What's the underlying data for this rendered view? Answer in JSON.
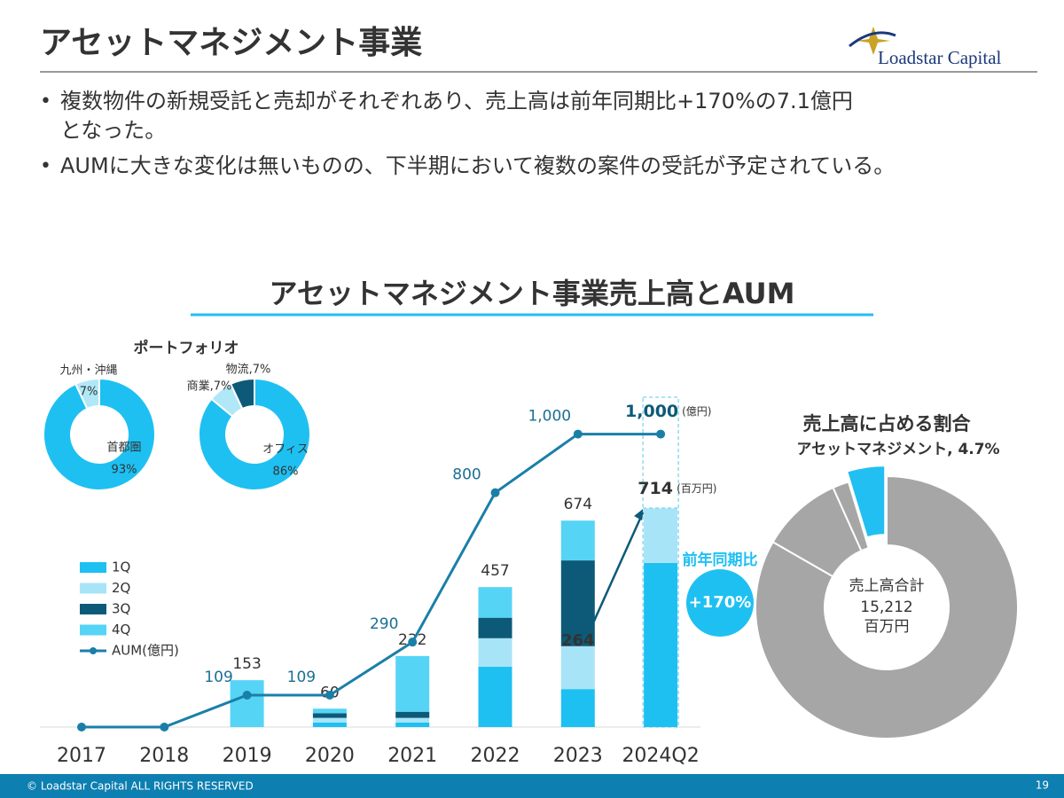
{
  "header": {
    "title": "アセットマネジメント事業",
    "logo": "Loadstar Capital"
  },
  "bullets": [
    [
      "複数物件の新規受託と売却がそれぞれあり、売上高は前年同期比+170%の7.1億円",
      "となった。"
    ],
    [
      "AUMに大きな変化は無いものの、下半期において複数の案件の受託が予定されている。"
    ]
  ],
  "section_title": "アセットマネジメント事業売上高とAUM",
  "footer": {
    "copyright": "© Loadstar Capital ALL RIGHTS RESERVED",
    "page": "19"
  },
  "chart_data": [
    {
      "type": "bar_line",
      "categories": [
        "2017",
        "2018",
        "2019",
        "2020",
        "2021",
        "2022",
        "2023",
        "2024Q2"
      ],
      "series": [
        {
          "name": "1Q",
          "color": "#1ec0f2",
          "values": [
            null,
            null,
            0,
            15,
            15,
            197,
            124,
            536
          ]
        },
        {
          "name": "2Q",
          "color": "#a8e4f8",
          "values": [
            null,
            null,
            0,
            15,
            15,
            93,
            140,
            178
          ]
        },
        {
          "name": "3Q",
          "color": "#0d5a78",
          "values": [
            null,
            null,
            0,
            15,
            20,
            67,
            280,
            null
          ]
        },
        {
          "name": "4Q",
          "color": "#55d4f6",
          "values": [
            null,
            null,
            153,
            15,
            182,
            100,
            130,
            null
          ]
        },
        {
          "name": "AUM(億円)",
          "color": "#1a7fa8",
          "axis": "y2",
          "values": [
            0,
            0,
            109,
            109,
            290,
            800,
            1000,
            1000
          ],
          "value_labels": [
            null,
            null,
            "109",
            "109",
            "290",
            "800",
            "1,000",
            "1,000"
          ]
        }
      ],
      "totals": [
        null,
        null,
        153,
        60,
        232,
        457,
        674,
        714
      ],
      "bar_unit": "(百万円)",
      "line_unit": "(億円)",
      "h1_2023": 264,
      "yoy_title": "前年同期比",
      "yoy": {
        "value": 170,
        "label": "+170%"
      },
      "ylim": [
        0,
        1100
      ],
      "y2lim": [
        0,
        1150
      ]
    },
    {
      "type": "donut",
      "title": "ポートフォリオ",
      "categories": [
        "首都圏",
        "九州・沖縄"
      ],
      "values": [
        93,
        7
      ],
      "value_labels": [
        "93%",
        "7%"
      ],
      "colors": [
        "#1ec0f2",
        "#b0e8f8"
      ]
    },
    {
      "type": "donut",
      "categories": [
        "オフィス",
        "商業",
        "物流"
      ],
      "values": [
        86,
        7,
        7
      ],
      "value_labels": [
        "86%",
        "商業,7%",
        "物流,7%"
      ],
      "colors": [
        "#1ec0f2",
        "#b0e8f8",
        "#0d5a78"
      ]
    },
    {
      "type": "donut",
      "title": "売上高に占める割合",
      "categories": [
        null,
        null,
        null,
        "アセットマネジメント, 4.7%"
      ],
      "values": [
        83.3,
        10.0,
        2.0,
        4.7
      ],
      "colors": [
        "#a6a6a6",
        "#a6a6a6",
        "#a6a6a6",
        "#22bff2"
      ],
      "center_title": "売上高合計",
      "total": {
        "value": 15212,
        "label": "15,212"
      },
      "total_unit": "百万円"
    }
  ]
}
